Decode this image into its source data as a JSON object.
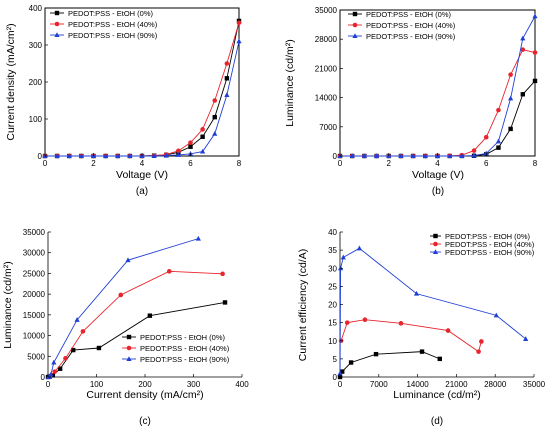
{
  "chart_data": [
    {
      "type": "line",
      "caption": "(a)",
      "xlabel": "Voltage (V)",
      "ylabel": "Current density (mA/cm²)",
      "xlim": [
        0,
        8
      ],
      "ylim": [
        0,
        400
      ],
      "xticks": [
        "0",
        "2",
        "4",
        "6",
        "8"
      ],
      "yticks": [
        "0",
        "100",
        "200",
        "300",
        "400"
      ],
      "legend_position": "top-left",
      "series": [
        {
          "name": "PEDOT:PSS - EtOH (0%)",
          "color": "#000000",
          "marker": "square",
          "x": [
            0,
            0.5,
            1,
            1.5,
            2,
            2.5,
            3,
            3.5,
            4,
            4.5,
            5,
            5.5,
            6,
            6.5,
            7,
            7.5,
            8
          ],
          "y": [
            0,
            0,
            0,
            0,
            0,
            0,
            0,
            0,
            0,
            1,
            3,
            10,
            25,
            52,
            105,
            210,
            365
          ]
        },
        {
          "name": "PEDOT:PSS - EtOH (40%)",
          "color": "#e8242c",
          "marker": "circle",
          "x": [
            0,
            0.5,
            1,
            1.5,
            2,
            2.5,
            3,
            3.5,
            4,
            4.5,
            5,
            5.5,
            6,
            6.5,
            7,
            7.5,
            8
          ],
          "y": [
            0,
            0,
            0,
            0,
            0,
            0,
            0,
            0,
            0,
            1,
            4,
            14,
            36,
            72,
            150,
            250,
            360
          ]
        },
        {
          "name": "PEDOT:PSS - EtOH (90%)",
          "color": "#1f3fd6",
          "marker": "triangle",
          "x": [
            0,
            0.5,
            1,
            1.5,
            2,
            2.5,
            3,
            3.5,
            4,
            4.5,
            5,
            5.5,
            6,
            6.5,
            7,
            7.5,
            8
          ],
          "y": [
            0,
            0,
            0,
            0,
            0,
            0,
            0,
            0,
            0,
            0,
            1,
            3,
            6,
            12,
            60,
            165,
            310
          ]
        }
      ]
    },
    {
      "type": "line",
      "caption": "(b)",
      "xlabel": "Voltage (V)",
      "ylabel": "Luminance (cd/m²)",
      "xlim": [
        0,
        8
      ],
      "ylim": [
        0,
        35000
      ],
      "xticks": [
        "0",
        "2",
        "4",
        "6",
        "8"
      ],
      "yticks": [
        "0",
        "7000",
        "14000",
        "21000",
        "28000",
        "35000"
      ],
      "legend_position": "top-left",
      "series": [
        {
          "name": "PEDOT:PSS - EtOH (0%)",
          "color": "#000000",
          "marker": "square",
          "x": [
            0,
            0.5,
            1,
            1.5,
            2,
            2.5,
            3,
            3.5,
            4,
            4.5,
            5,
            5.5,
            6,
            6.5,
            7,
            7.5,
            8
          ],
          "y": [
            0,
            0,
            0,
            0,
            0,
            0,
            0,
            0,
            0,
            0,
            10,
            50,
            400,
            2000,
            6500,
            14800,
            18000
          ]
        },
        {
          "name": "PEDOT:PSS - EtOH (40%)",
          "color": "#e8242c",
          "marker": "circle",
          "x": [
            0,
            0.5,
            1,
            1.5,
            2,
            2.5,
            3,
            3.5,
            4,
            4.5,
            5,
            5.5,
            6,
            6.5,
            7,
            7.5,
            8
          ],
          "y": [
            0,
            0,
            0,
            0,
            0,
            0,
            0,
            0,
            0,
            50,
            200,
            1300,
            4500,
            11000,
            19500,
            25500,
            24800
          ]
        },
        {
          "name": "PEDOT:PSS - EtOH (90%)",
          "color": "#1f3fd6",
          "marker": "triangle",
          "x": [
            0,
            0.5,
            1,
            1.5,
            2,
            2.5,
            3,
            3.5,
            4,
            4.5,
            5,
            5.5,
            6,
            6.5,
            7,
            7.5,
            8
          ],
          "y": [
            0,
            0,
            0,
            0,
            0,
            0,
            0,
            0,
            0,
            0,
            10,
            100,
            600,
            3500,
            13800,
            28200,
            33500
          ]
        }
      ]
    },
    {
      "type": "line",
      "caption": "(c)",
      "xlabel": "Current density (mA/cm²)",
      "ylabel": "Luminance (cd/m²)",
      "xlim": [
        0,
        400
      ],
      "ylim": [
        0,
        35000
      ],
      "xticks": [
        "0",
        "100",
        "200",
        "300",
        "400"
      ],
      "yticks": [
        "0",
        "5000",
        "10000",
        "15000",
        "20000",
        "25000",
        "30000",
        "35000"
      ],
      "legend_position": "bottom-right",
      "series": [
        {
          "name": "PEDOT:PSS - EtOH (0%)",
          "color": "#000000",
          "marker": "square",
          "x": [
            0,
            3,
            10,
            25,
            52,
            105,
            210,
            365
          ],
          "y": [
            0,
            50,
            400,
            2000,
            6500,
            7000,
            14800,
            18000
          ]
        },
        {
          "name": "PEDOT:PSS - EtOH (40%)",
          "color": "#e8242c",
          "marker": "circle",
          "x": [
            4,
            14,
            36,
            72,
            150,
            250,
            360
          ],
          "y": [
            200,
            1300,
            4500,
            11000,
            19800,
            25500,
            24900
          ]
        },
        {
          "name": "PEDOT:PSS - EtOH (90%)",
          "color": "#1f3fd6",
          "marker": "triangle",
          "x": [
            1,
            3,
            6,
            12,
            60,
            165,
            310
          ],
          "y": [
            10,
            100,
            600,
            3500,
            13800,
            28200,
            33400
          ]
        }
      ]
    },
    {
      "type": "line",
      "caption": "(d)",
      "xlabel": "Luminance (cd/m²)",
      "ylabel": "Current efficiency (cd/A)",
      "xlim": [
        0,
        35000
      ],
      "ylim": [
        0,
        40
      ],
      "xticks": [
        "0",
        "7000",
        "14000",
        "21000",
        "28000",
        "35000"
      ],
      "yticks": [
        "0",
        "5",
        "10",
        "15",
        "20",
        "25",
        "30",
        "35",
        "40"
      ],
      "legend_position": "top-right",
      "series": [
        {
          "name": "PEDOT:PSS - EtOH (0%)",
          "color": "#000000",
          "marker": "square",
          "x": [
            0,
            400,
            2000,
            6500,
            14800,
            18000
          ],
          "y": [
            0,
            1.5,
            4,
            6.3,
            7,
            5
          ]
        },
        {
          "name": "PEDOT:PSS - EtOH (40%)",
          "color": "#e8242c",
          "marker": "circle",
          "x": [
            200,
            1300,
            4500,
            11000,
            19500,
            25000,
            25500
          ],
          "y": [
            10,
            15,
            15.8,
            14.8,
            12.8,
            7,
            9.8
          ]
        },
        {
          "name": "PEDOT:PSS - EtOH (90%)",
          "color": "#1f3fd6",
          "marker": "triangle",
          "x": [
            10,
            100,
            600,
            3500,
            13800,
            28200,
            33500
          ],
          "y": [
            1,
            30,
            33,
            35.5,
            23,
            17,
            10.5
          ]
        }
      ]
    }
  ]
}
